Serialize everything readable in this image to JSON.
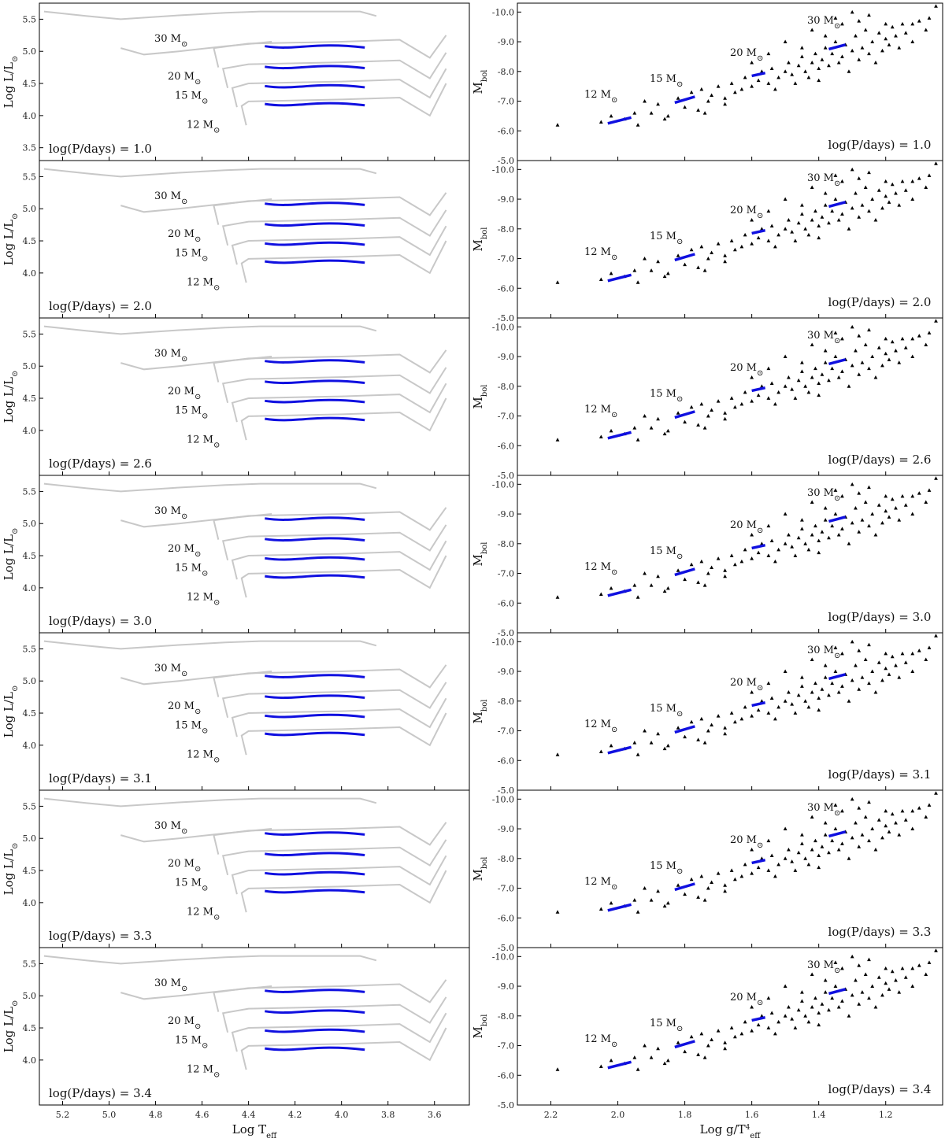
{
  "chart_data": {
    "type": "scatter",
    "description_free": true,
    "left_column": {
      "xlabel": "Log T",
      "xlabel_sub": "eff",
      "ylabel": "Log L/L",
      "ylabel_sub": "⊙",
      "xlim": [
        5.3,
        3.45
      ],
      "ylim": [
        3.3,
        5.75
      ],
      "xticks": [
        5.2,
        5.0,
        4.8,
        4.6,
        4.4,
        4.2,
        4.0,
        3.8,
        3.6
      ],
      "xtick_labels": [
        "5.2",
        "5.0",
        "4.8",
        "4.6",
        "4.4",
        "4.2",
        "4.0",
        "3.8",
        "3.6"
      ],
      "yticks": [
        4.0,
        4.5,
        5.0,
        5.5
      ],
      "ytick_labels": [
        "4.0",
        "4.5",
        "5.0",
        "5.5"
      ],
      "yticks_first": [
        3.5,
        4.0,
        4.5,
        5.0,
        5.5
      ],
      "ytick_labels_first": [
        "3.5",
        "4.0",
        "4.5",
        "5.0",
        "5.5"
      ]
    },
    "right_column": {
      "xlabel": "Log g/T",
      "xlabel_sup": "4",
      "xlabel_sub": "eff",
      "ylabel": "M",
      "ylabel_sub": "bol",
      "xlim": [
        2.3,
        1.03
      ],
      "ylim": [
        -5.0,
        -10.3
      ],
      "xticks": [
        2.2,
        2.0,
        1.8,
        1.6,
        1.4,
        1.2
      ],
      "xtick_labels": [
        "2.2",
        "2.0",
        "1.8",
        "1.6",
        "1.4",
        "1.2"
      ],
      "yticks": [
        -5.0,
        -6.0,
        -7.0,
        -8.0,
        -9.0,
        -10.0
      ],
      "ytick_labels": [
        "-5.0",
        "-6.0",
        "-7.0",
        "-8.0",
        "-9.0",
        "-10.0"
      ]
    },
    "panels": [
      {
        "period_label": "log(P/days) = 1.0"
      },
      {
        "period_label": "log(P/days) = 2.0"
      },
      {
        "period_label": "log(P/days) = 2.6"
      },
      {
        "period_label": "log(P/days) = 3.0"
      },
      {
        "period_label": "log(P/days) = 3.1"
      },
      {
        "period_label": "log(P/days) = 3.3"
      },
      {
        "period_label": "log(P/days) = 3.4"
      }
    ],
    "mass_labels": [
      "30 M",
      "20 M",
      "15 M",
      "12 M"
    ],
    "mass_label_sub": "⊙",
    "hr_tracks": [
      {
        "mass": 30,
        "logL": 5.1
      },
      {
        "mass": 20,
        "logL": 4.78
      },
      {
        "mass": 15,
        "logL": 4.48
      },
      {
        "mass": 12,
        "logL": 4.2
      }
    ],
    "observed_stars": [
      [
        2.28,
        -5.0
      ],
      [
        2.18,
        -6.2
      ],
      [
        2.05,
        -6.3
      ],
      [
        2.02,
        -6.5
      ],
      [
        1.98,
        -6.4
      ],
      [
        1.95,
        -6.6
      ],
      [
        1.92,
        -7.0
      ],
      [
        1.9,
        -6.6
      ],
      [
        1.88,
        -6.9
      ],
      [
        1.85,
        -6.5
      ],
      [
        1.82,
        -7.1
      ],
      [
        1.8,
        -6.8
      ],
      [
        1.78,
        -7.3
      ],
      [
        1.76,
        -6.7
      ],
      [
        1.75,
        -7.4
      ],
      [
        1.73,
        -7.0
      ],
      [
        1.72,
        -7.2
      ],
      [
        1.7,
        -7.5
      ],
      [
        1.68,
        -7.1
      ],
      [
        1.66,
        -7.6
      ],
      [
        1.65,
        -7.3
      ],
      [
        1.63,
        -7.4
      ],
      [
        1.62,
        -7.8
      ],
      [
        1.6,
        -7.5
      ],
      [
        1.58,
        -7.7
      ],
      [
        1.57,
        -8.0
      ],
      [
        1.55,
        -7.6
      ],
      [
        1.54,
        -8.1
      ],
      [
        1.52,
        -7.8
      ],
      [
        1.5,
        -8.0
      ],
      [
        1.49,
        -8.3
      ],
      [
        1.48,
        -7.9
      ],
      [
        1.46,
        -8.2
      ],
      [
        1.45,
        -8.5
      ],
      [
        1.44,
        -8.0
      ],
      [
        1.43,
        -7.8
      ],
      [
        1.42,
        -8.3
      ],
      [
        1.41,
        -8.6
      ],
      [
        1.4,
        -8.1
      ],
      [
        1.39,
        -8.4
      ],
      [
        1.38,
        -8.8
      ],
      [
        1.37,
        -8.2
      ],
      [
        1.36,
        -8.6
      ],
      [
        1.35,
        -9.0
      ],
      [
        1.34,
        -8.3
      ],
      [
        1.33,
        -8.5
      ],
      [
        1.32,
        -8.9
      ],
      [
        1.31,
        -8.0
      ],
      [
        1.3,
        -8.7
      ],
      [
        1.29,
        -9.2
      ],
      [
        1.28,
        -8.4
      ],
      [
        1.27,
        -8.8
      ],
      [
        1.26,
        -9.4
      ],
      [
        1.25,
        -8.6
      ],
      [
        1.24,
        -9.0
      ],
      [
        1.23,
        -8.3
      ],
      [
        1.22,
        -9.3
      ],
      [
        1.21,
        -8.7
      ],
      [
        1.2,
        -9.1
      ],
      [
        1.19,
        -8.9
      ],
      [
        1.18,
        -9.5
      ],
      [
        1.17,
        -9.2
      ],
      [
        1.16,
        -8.8
      ],
      [
        1.15,
        -9.6
      ],
      [
        1.14,
        -9.3
      ],
      [
        1.12,
        -9.0
      ],
      [
        1.1,
        -9.7
      ],
      [
        1.08,
        -9.4
      ],
      [
        1.07,
        -9.8
      ],
      [
        1.05,
        -10.2
      ],
      [
        1.35,
        -9.8
      ],
      [
        1.3,
        -10.0
      ],
      [
        1.42,
        -9.4
      ],
      [
        1.5,
        -9.0
      ],
      [
        1.55,
        -8.6
      ],
      [
        1.6,
        -8.3
      ],
      [
        1.47,
        -7.6
      ],
      [
        1.53,
        -7.4
      ],
      [
        1.68,
        -6.9
      ],
      [
        1.74,
        -6.6
      ],
      [
        1.86,
        -6.4
      ],
      [
        1.94,
        -6.2
      ],
      [
        1.25,
        -9.9
      ],
      [
        1.33,
        -9.6
      ],
      [
        1.45,
        -8.8
      ],
      [
        1.38,
        -9.2
      ],
      [
        1.28,
        -9.7
      ],
      [
        1.2,
        -9.6
      ],
      [
        1.12,
        -9.6
      ],
      [
        1.4,
        -7.7
      ]
    ],
    "model_mbol_segments": [
      {
        "mass": 12,
        "from": [
          2.03,
          -6.25
        ],
        "to": [
          1.96,
          -6.45
        ]
      },
      {
        "mass": 15,
        "from": [
          1.83,
          -6.95
        ],
        "to": [
          1.77,
          -7.15
        ]
      },
      {
        "mass": 20,
        "from": [
          1.6,
          -7.85
        ],
        "to": [
          1.56,
          -7.95
        ]
      },
      {
        "mass": 30,
        "from": [
          1.37,
          -8.75
        ],
        "to": [
          1.32,
          -8.9
        ]
      }
    ]
  }
}
